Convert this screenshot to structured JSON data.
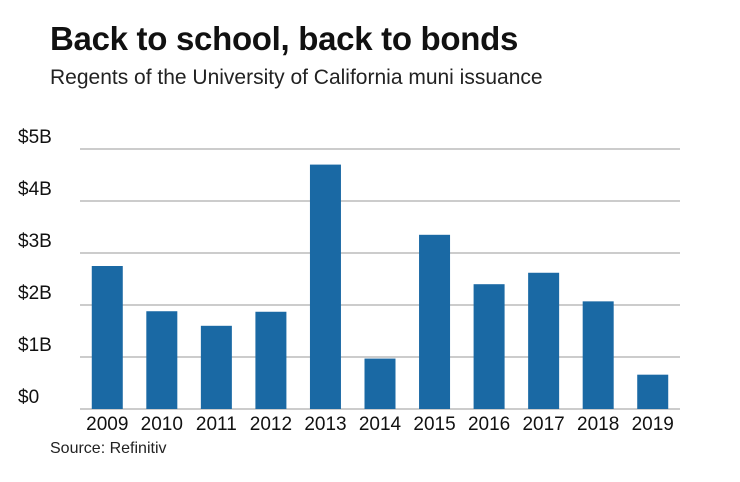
{
  "title": "Back to school, back to bonds",
  "subtitle": "Regents of the University of California muni issuance",
  "source": "Source: Refinitiv",
  "colors": {
    "bar": "#1a69a4",
    "grid": "#999999",
    "text": "#111111"
  },
  "chart_data": {
    "type": "bar",
    "categories": [
      "2009",
      "2010",
      "2011",
      "2012",
      "2013",
      "2014",
      "2015",
      "2016",
      "2017",
      "2018",
      "2019"
    ],
    "values": [
      2.75,
      1.88,
      1.6,
      1.87,
      4.7,
      0.97,
      3.35,
      2.4,
      2.62,
      2.07,
      0.66
    ],
    "unit": "billions of dollars",
    "ylim": [
      0,
      5
    ],
    "yticks": [
      0,
      1,
      2,
      3,
      4,
      5
    ],
    "ytick_labels": [
      "$0",
      "$1B",
      "$2B",
      "$3B",
      "$4B",
      "$5B"
    ],
    "grid": true
  }
}
